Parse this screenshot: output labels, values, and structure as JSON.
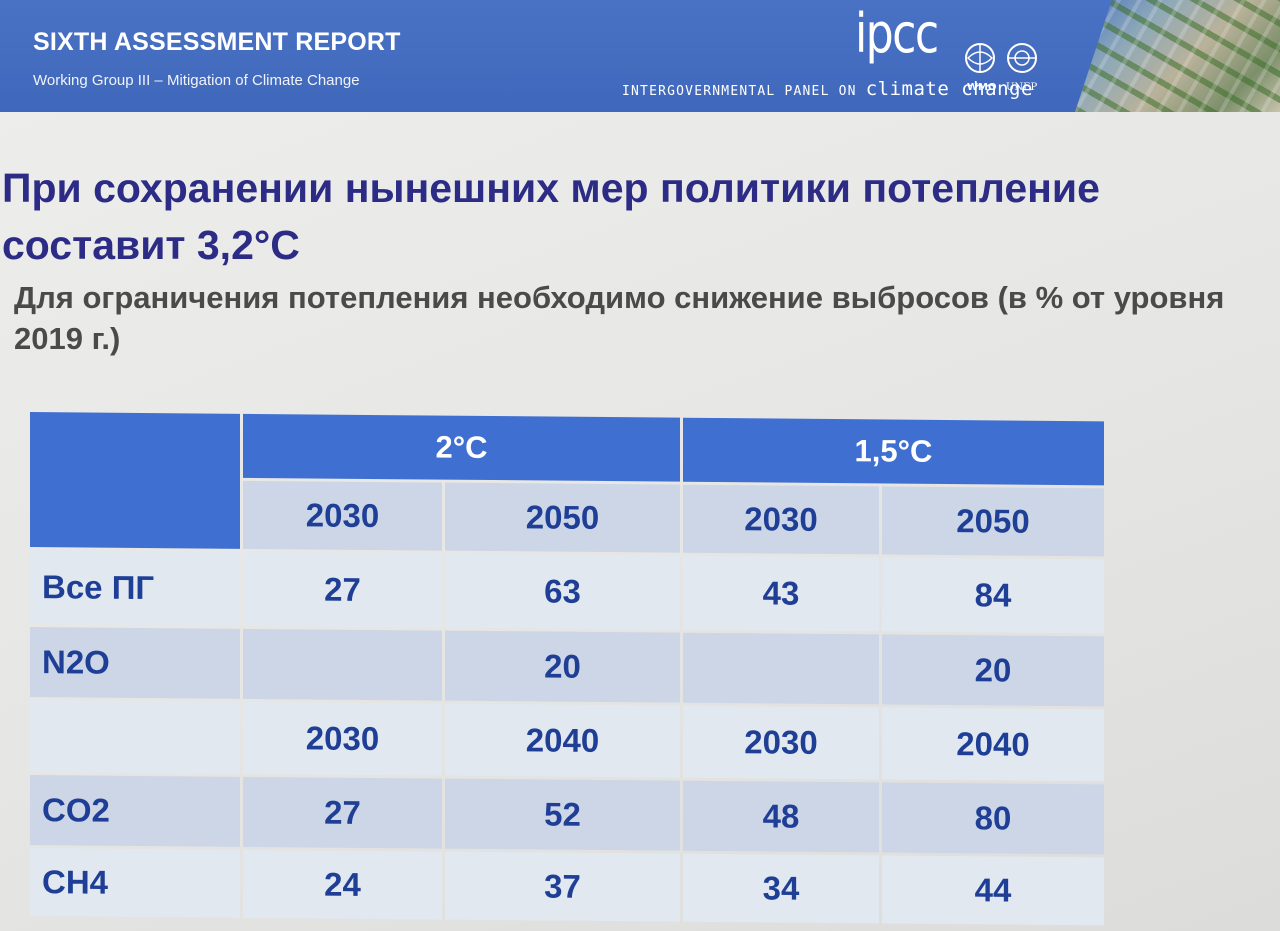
{
  "banner": {
    "title": "SIXTH ASSESSMENT REPORT",
    "subtitle": "Working Group III – Mitigation of Climate Change",
    "logo_text": "ipcc",
    "org_full_prefix": "INTERGOVERNMENTAL PANEL ON ",
    "org_full_suffix": "climate change",
    "partners": [
      "WMO",
      "UNEP"
    ]
  },
  "slide": {
    "title": "При сохранении нынешних мер политики потепление составит 3,2°С",
    "subtitle": "Для ограничения потепления необходимо снижение выбросов (в % от уровня 2019 г.)"
  },
  "table": {
    "groups": [
      "2°С",
      "1,5°С"
    ],
    "rows": [
      {
        "label": "",
        "values": [
          "2030",
          "2050",
          "2030",
          "2050"
        ]
      },
      {
        "label": "Все ПГ",
        "values": [
          "27",
          "63",
          "43",
          "84"
        ]
      },
      {
        "label": "N2O",
        "values": [
          "",
          "20",
          "",
          "20"
        ]
      },
      {
        "label": "",
        "values": [
          "2030",
          "2040",
          "2030",
          "2040"
        ]
      },
      {
        "label": "CO2",
        "values": [
          "27",
          "52",
          "48",
          "80"
        ]
      },
      {
        "label": "CH4",
        "values": [
          "24",
          "37",
          "34",
          "44"
        ]
      }
    ]
  },
  "colors": {
    "banner": "#4a72c4",
    "title": "#2c2c86",
    "table_header": "#3f6fd0",
    "table_text": "#1f3f97"
  }
}
